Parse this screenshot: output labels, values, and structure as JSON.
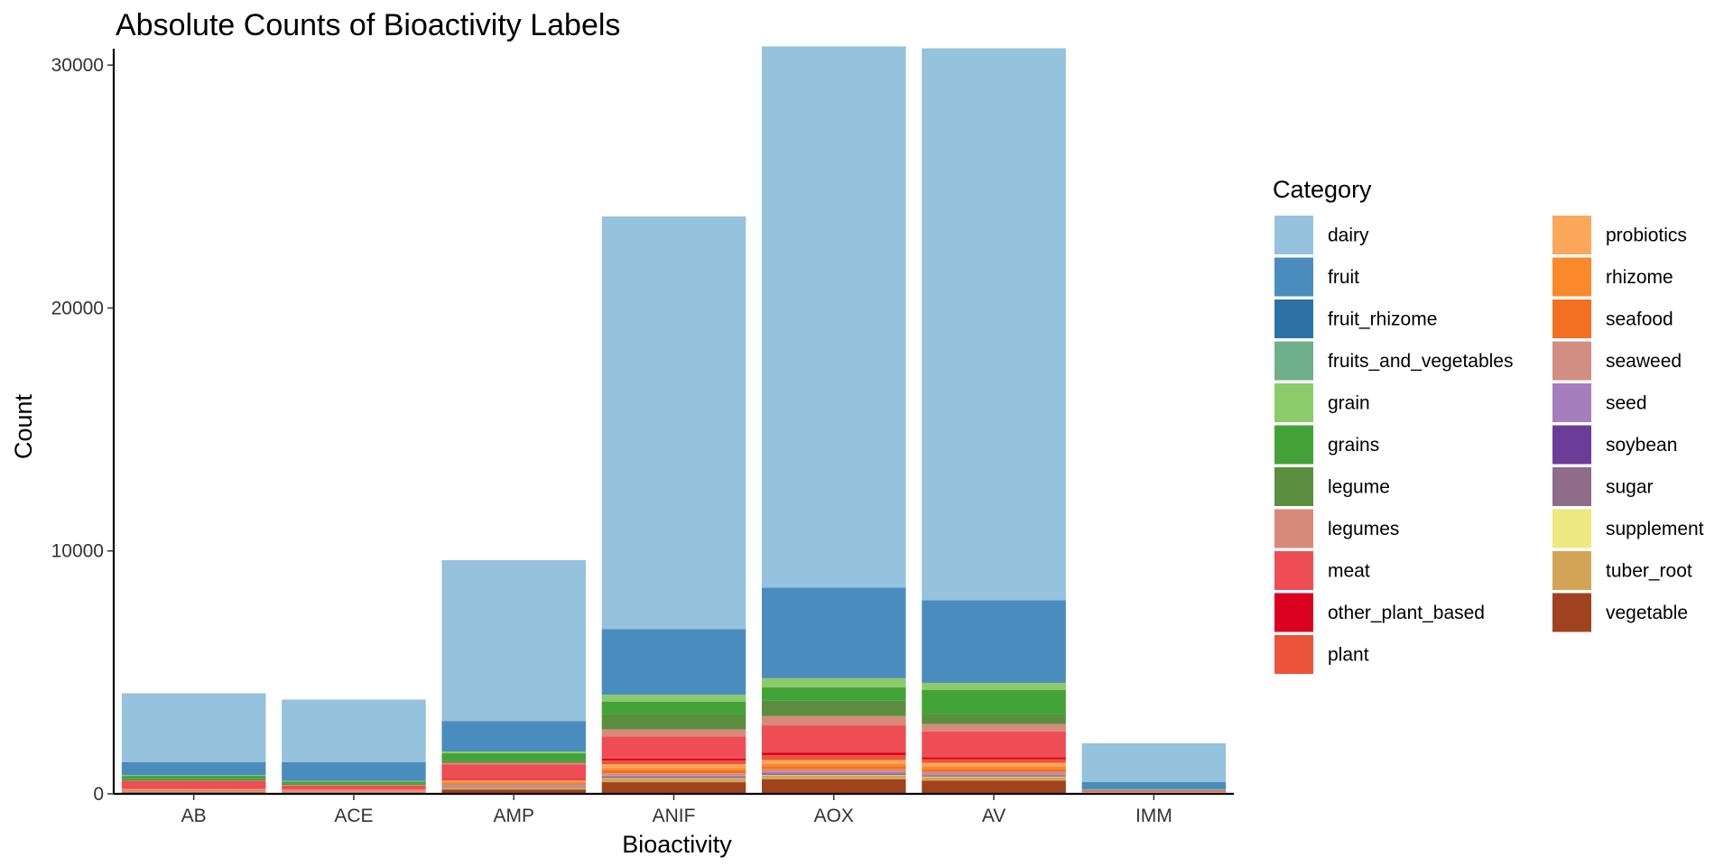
{
  "chart_data": {
    "type": "bar",
    "stacked": true,
    "title": "Absolute Counts of Bioactivity Labels",
    "xlabel": "Bioactivity",
    "ylabel": "Count",
    "ylim": [
      0,
      30600
    ],
    "yticks": [
      0,
      10000,
      20000,
      30000
    ],
    "y_tick_labels": [
      "0",
      "10000",
      "20000",
      "30000"
    ],
    "grid": false,
    "legend": {
      "title": "Category",
      "position": "right",
      "columns": 2
    },
    "categories": [
      "AB",
      "ACE",
      "AMP",
      "ANIF",
      "AOX",
      "AV",
      "IMM"
    ],
    "series": [
      {
        "name": "vegetable",
        "color": "#A0421D",
        "values": [
          60,
          50,
          180,
          480,
          600,
          540,
          30
        ]
      },
      {
        "name": "tuber_root",
        "color": "#D2A556",
        "values": [
          30,
          20,
          80,
          150,
          150,
          150,
          10
        ]
      },
      {
        "name": "supplement",
        "color": "#EDE880",
        "values": [
          0,
          0,
          10,
          20,
          20,
          20,
          0
        ]
      },
      {
        "name": "sugar",
        "color": "#8E6C8A",
        "values": [
          10,
          10,
          30,
          40,
          60,
          40,
          0
        ]
      },
      {
        "name": "soybean",
        "color": "#6C3D98",
        "values": [
          0,
          0,
          10,
          20,
          20,
          20,
          0
        ]
      },
      {
        "name": "seed",
        "color": "#A57FBD",
        "values": [
          10,
          10,
          20,
          40,
          40,
          40,
          0
        ]
      },
      {
        "name": "seaweed",
        "color": "#D28E83",
        "values": [
          20,
          20,
          60,
          100,
          120,
          100,
          10
        ]
      },
      {
        "name": "seafood",
        "color": "#F37022",
        "values": [
          20,
          20,
          50,
          120,
          130,
          120,
          10
        ]
      },
      {
        "name": "rhizome",
        "color": "#F9892A",
        "values": [
          20,
          10,
          50,
          100,
          100,
          100,
          10
        ]
      },
      {
        "name": "probiotics",
        "color": "#FCA85A",
        "values": [
          20,
          20,
          50,
          150,
          150,
          150,
          10
        ]
      },
      {
        "name": "plant",
        "color": "#EC543A",
        "values": [
          20,
          20,
          50,
          150,
          200,
          150,
          10
        ]
      },
      {
        "name": "other_plant_based",
        "color": "#DB0020",
        "values": [
          10,
          10,
          30,
          80,
          100,
          80,
          0
        ]
      },
      {
        "name": "meat",
        "color": "#EE4D55",
        "values": [
          300,
          150,
          600,
          920,
          1130,
          1060,
          50
        ]
      },
      {
        "name": "legumes",
        "color": "#D8897A",
        "values": [
          20,
          20,
          50,
          280,
          380,
          300,
          10
        ]
      },
      {
        "name": "legume",
        "color": "#5B8E3E",
        "values": [
          60,
          50,
          100,
          600,
          630,
          400,
          10
        ]
      },
      {
        "name": "grains",
        "color": "#43A339",
        "values": [
          140,
          100,
          300,
          550,
          550,
          1000,
          20
        ]
      },
      {
        "name": "grain",
        "color": "#8BCB69",
        "values": [
          30,
          20,
          70,
          280,
          380,
          300,
          10
        ]
      },
      {
        "name": "fruits_and_vegetables",
        "color": "#6FAF8B",
        "values": [
          0,
          0,
          0,
          0,
          0,
          0,
          0
        ]
      },
      {
        "name": "fruit_rhizome",
        "color": "#2C72A4",
        "values": [
          0,
          0,
          0,
          0,
          0,
          0,
          0
        ]
      },
      {
        "name": "fruit",
        "color": "#4B8CBF",
        "values": [
          540,
          770,
          1260,
          2700,
          3730,
          3400,
          300
        ]
      },
      {
        "name": "dairy",
        "color": "#95C2DC",
        "values": [
          2830,
          2580,
          6620,
          16990,
          22280,
          22720,
          1590
        ]
      }
    ]
  }
}
